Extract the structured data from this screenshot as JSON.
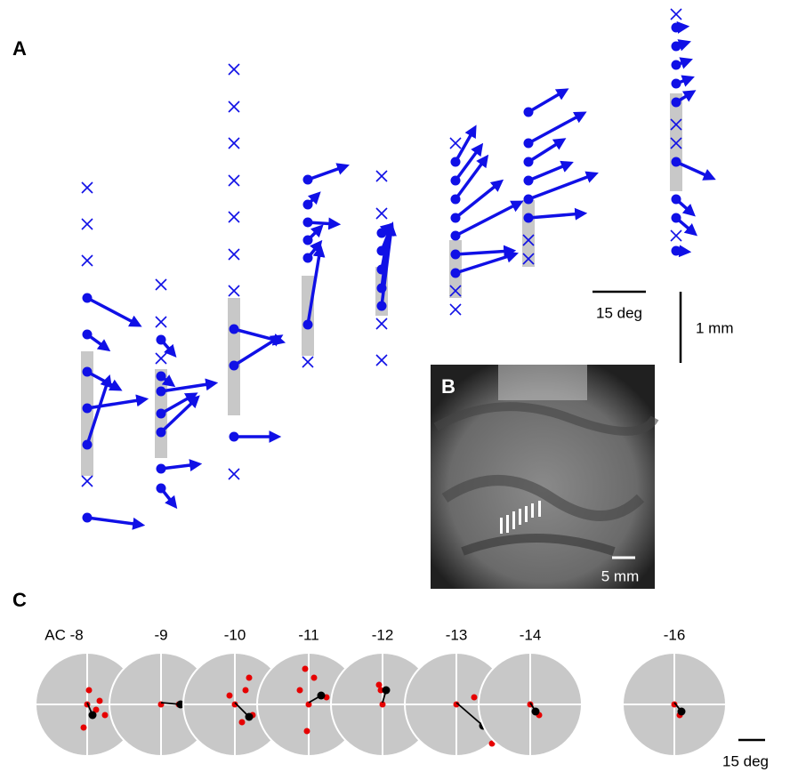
{
  "panels": {
    "a": {
      "label": "A",
      "scale_deg": "15 deg",
      "scale_mm": "1 mm"
    },
    "b": {
      "label": "B",
      "scale": "5 mm"
    },
    "c": {
      "label": "C",
      "tracks": [
        "AC -8",
        "-9",
        "-10",
        "-11",
        "-12",
        "-13",
        "-14",
        "-16"
      ],
      "scale": "15 deg"
    }
  }
}
